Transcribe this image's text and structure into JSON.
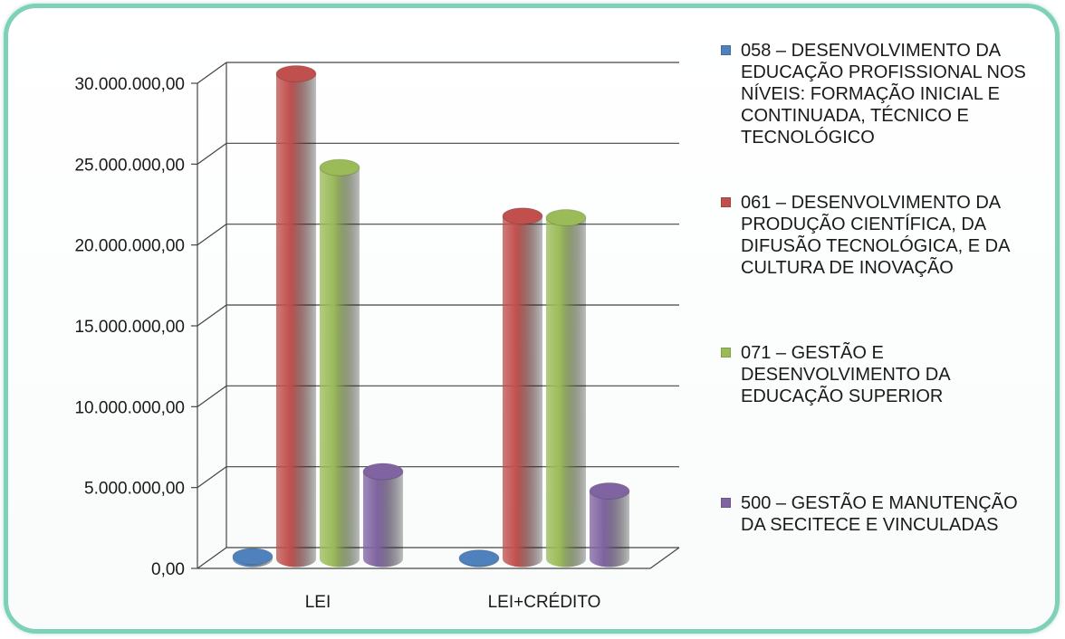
{
  "chart_data": {
    "type": "bar",
    "title": "",
    "xlabel": "",
    "ylabel": "",
    "categories": [
      "LEI",
      "LEI+CRÉDITO"
    ],
    "ylim": [
      0,
      30000000
    ],
    "yticks": [
      0,
      5000000,
      10000000,
      15000000,
      20000000,
      25000000,
      30000000
    ],
    "ytick_labels": [
      "0,00",
      "5.000.000,00",
      "10.000.000,00",
      "15.000.000,00",
      "20.000.000,00",
      "25.000.000,00",
      "30.000.000,00"
    ],
    "grid": true,
    "style": "3d-cylinder",
    "legend_position": "right",
    "series": [
      {
        "name": "058 – DESENVOLVIMENTO DA EDUCAÇÃO PROFISSIONAL NOS NÍVEIS: FORMAÇÃO INICIAL E CONTINUADA, TÉCNICO E TECNOLÓGICO",
        "values": [
          150000,
          50000
        ],
        "color": "#4f81bd"
      },
      {
        "name": "061 – DESENVOLVIMENTO DA PRODUÇÃO CIENTÍFICA, DA DIFUSÃO TECNOLÓGICA, E DA CULTURA DE INOVAÇÃO",
        "values": [
          30000000,
          21200000
        ],
        "color": "#c0504d"
      },
      {
        "name": "071 – GESTÃO E DESENVOLVIMENTO DA EDUCAÇÃO SUPERIOR",
        "values": [
          24200000,
          21100000
        ],
        "color": "#9bbb59"
      },
      {
        "name": "500 – GESTÃO E MANUTENÇÃO DA SECITECE E VINCULADAS",
        "values": [
          5400000,
          4200000
        ],
        "color": "#8064a2"
      }
    ]
  },
  "legend": {
    "items": [
      {
        "label": "058 – DESENVOLVIMENTO DA\nEDUCAÇÃO PROFISSIONAL NOS\nNÍVEIS: FORMAÇÃO INICIAL E\nCONTINUADA, TÉCNICO E\nTECNOLÓGICO",
        "color": "#4f81bd"
      },
      {
        "label": "061 – DESENVOLVIMENTO DA\nPRODUÇÃO CIENTÍFICA, DA\nDIFUSÃO TECNOLÓGICA, E DA\nCULTURA DE INOVAÇÃO",
        "color": "#c0504d"
      },
      {
        "label": "071 – GESTÃO E\nDESENVOLVIMENTO DA\nEDUCAÇÃO SUPERIOR",
        "color": "#9bbb59"
      },
      {
        "label": "500 – GESTÃO E MANUTENÇÃO\nDA SECITECE E VINCULADAS",
        "color": "#8064a2"
      }
    ]
  }
}
